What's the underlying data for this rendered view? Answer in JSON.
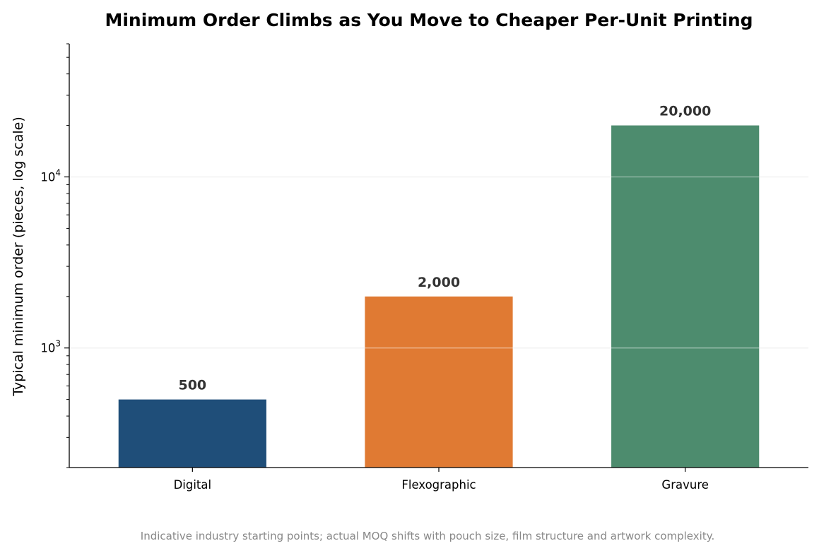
{
  "chart_data": {
    "type": "bar",
    "title": "Minimum Order Climbs as You Move to Cheaper Per-Unit Printing",
    "xlabel": "",
    "ylabel": "Typical minimum order (pieces, log scale)",
    "yscale": "log",
    "ylim": [
      200,
      60000
    ],
    "grid": "horizontal major lines",
    "categories": [
      "Digital",
      "Flexographic",
      "Gravure"
    ],
    "values": [
      500,
      2000,
      20000
    ],
    "value_labels": [
      "500",
      "2,000",
      "20,000"
    ],
    "colors": [
      "#1f4e79",
      "#e07a33",
      "#4d8c6e"
    ],
    "y_ticks": [
      {
        "value": 1000,
        "base": "10",
        "exp": "3"
      },
      {
        "value": 10000,
        "base": "10",
        "exp": "4"
      }
    ],
    "footnote": "Indicative industry starting points; actual MOQ shifts with pouch size, film structure and artwork complexity."
  }
}
